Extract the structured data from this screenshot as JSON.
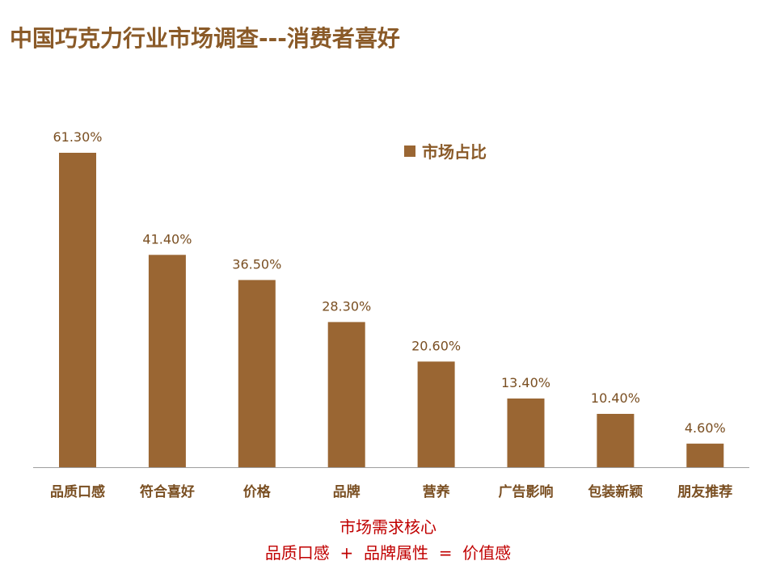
{
  "page": {
    "title": "中国巧克力行业市场调查---消费者喜好",
    "caption_line1": "市场需求核心",
    "caption_line2": "品质口感  +  品牌属性  =  价值感"
  },
  "colors": {
    "bar": "#9a6633",
    "title": "#8a5a28",
    "label": "#7a4f22",
    "axis": "#9e9e9e",
    "caption": "#c00000"
  },
  "chart_data": {
    "type": "bar",
    "categories": [
      "品质口感",
      "符合喜好",
      "价格",
      "品牌",
      "营养",
      "广告影响",
      "包装新颖",
      "朋友推荐"
    ],
    "series": [
      {
        "name": "市场占比",
        "values": [
          61.3,
          41.4,
          36.5,
          28.3,
          20.6,
          13.4,
          10.4,
          4.6
        ]
      }
    ],
    "data_labels": [
      "61.30%",
      "41.40%",
      "36.50%",
      "28.30%",
      "20.60%",
      "13.40%",
      "10.40%",
      "4.60%"
    ],
    "ylim": [
      0,
      61.3
    ],
    "grid": false,
    "legend_position": "top-right"
  }
}
